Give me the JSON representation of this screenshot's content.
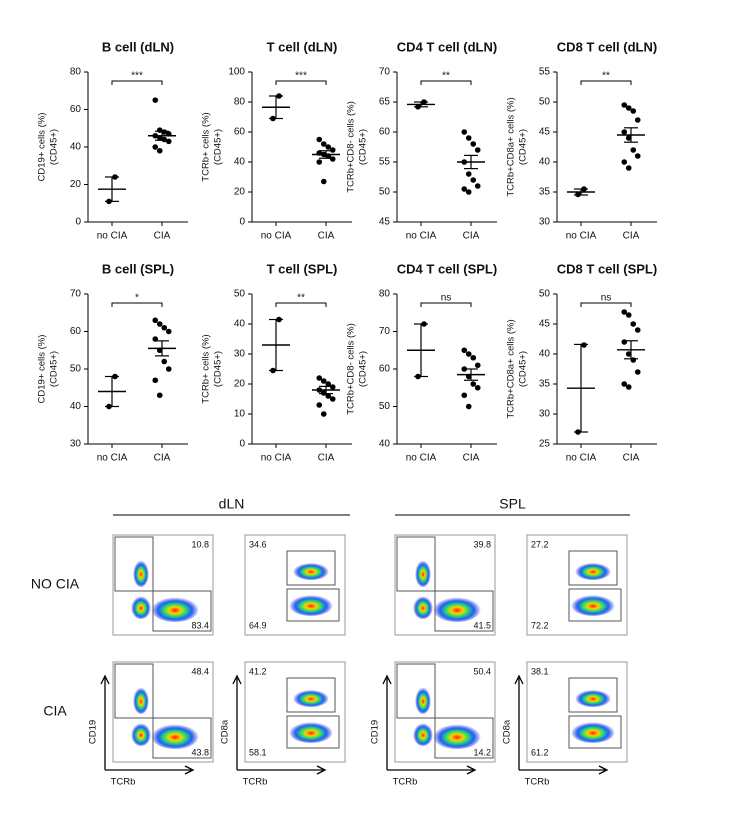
{
  "chart_data": [
    {
      "type": "dot",
      "title": "B cell (dLN)",
      "ylabel": [
        "CD19+ cells (%)",
        "(CD45+)"
      ],
      "categories": [
        "no CIA",
        "CIA"
      ],
      "values": [
        [
          24,
          11
        ],
        [
          65,
          49,
          48,
          47,
          46,
          45,
          44,
          43,
          40,
          38
        ]
      ],
      "means": [
        17.5,
        46
      ],
      "errors": [
        6.5,
        2.4
      ],
      "annotation": "***",
      "ylim": [
        0,
        80
      ],
      "yticks": [
        0,
        20,
        40,
        60,
        80
      ]
    },
    {
      "type": "dot",
      "title": "T cell (dLN)",
      "ylabel": [
        "TCRb+ cells (%)",
        "(CD45+)"
      ],
      "categories": [
        "no CIA",
        "CIA"
      ],
      "values": [
        [
          84,
          69
        ],
        [
          55,
          52,
          50,
          48,
          46,
          45,
          44,
          42,
          40,
          27
        ]
      ],
      "means": [
        76.5,
        45
      ],
      "errors": [
        7.5,
        2.5
      ],
      "annotation": "***",
      "ylim": [
        0,
        100
      ],
      "yticks": [
        0,
        20,
        40,
        60,
        80,
        100
      ]
    },
    {
      "type": "dot",
      "title": "CD4 T cell (dLN)",
      "ylabel": [
        "TCRb+CD8- cells (%)",
        "(CD45+)"
      ],
      "categories": [
        "no CIA",
        "CIA"
      ],
      "values": [
        [
          65,
          64.2
        ],
        [
          60,
          59,
          58,
          57,
          55,
          53,
          52,
          51,
          50.5,
          50
        ]
      ],
      "means": [
        64.6,
        55
      ],
      "errors": [
        0.4,
        1.1
      ],
      "annotation": "**",
      "ylim": [
        45,
        70
      ],
      "yticks": [
        45,
        50,
        55,
        60,
        65,
        70
      ]
    },
    {
      "type": "dot",
      "title": "CD8 T cell (dLN)",
      "ylabel": [
        "TCRb+CD8a+ cells (%)",
        "(CD45+)"
      ],
      "categories": [
        "no CIA",
        "CIA"
      ],
      "values": [
        [
          35.5,
          34.6
        ],
        [
          49.5,
          49,
          48.5,
          47,
          45,
          44,
          42,
          41,
          40,
          39
        ]
      ],
      "means": [
        35,
        44.5
      ],
      "errors": [
        0.5,
        1.2
      ],
      "annotation": "**",
      "ylim": [
        30,
        55
      ],
      "yticks": [
        30,
        35,
        40,
        45,
        50,
        55
      ]
    },
    {
      "type": "dot",
      "title": "B cell (SPL)",
      "ylabel": [
        "CD19+ cells (%)",
        "(CD45+)"
      ],
      "categories": [
        "no CIA",
        "CIA"
      ],
      "values": [
        [
          48,
          40
        ],
        [
          63,
          62,
          61,
          60,
          58,
          55,
          52,
          50,
          47,
          43
        ]
      ],
      "means": [
        44,
        55.5
      ],
      "errors": [
        4,
        2
      ],
      "annotation": "*",
      "ylim": [
        30,
        70
      ],
      "yticks": [
        30,
        40,
        50,
        60,
        70
      ]
    },
    {
      "type": "dot",
      "title": "T cell (SPL)",
      "ylabel": [
        "TCRb+ cells (%)",
        "(CD45+)"
      ],
      "categories": [
        "no CIA",
        "CIA"
      ],
      "values": [
        [
          41.5,
          24.5
        ],
        [
          22,
          21,
          20,
          19,
          18,
          17,
          16,
          15,
          13,
          10
        ]
      ],
      "means": [
        33,
        18
      ],
      "errors": [
        8.5,
        1.2
      ],
      "annotation": "**",
      "ylim": [
        0,
        50
      ],
      "yticks": [
        0,
        10,
        20,
        30,
        40,
        50
      ]
    },
    {
      "type": "dot",
      "title": "CD4 T cell (SPL)",
      "ylabel": [
        "TCRb+CD8- cells (%)",
        "(CD45+)"
      ],
      "categories": [
        "no CIA",
        "CIA"
      ],
      "values": [
        [
          72,
          58
        ],
        [
          65,
          64,
          63,
          61,
          60,
          58,
          56,
          55,
          53,
          50
        ]
      ],
      "means": [
        65,
        58.5
      ],
      "errors": [
        7,
        1.5
      ],
      "annotation": "ns",
      "ylim": [
        40,
        80
      ],
      "yticks": [
        40,
        50,
        60,
        70,
        80
      ]
    },
    {
      "type": "dot",
      "title": "CD8 T cell (SPL)",
      "ylabel": [
        "TCRb+CD8a+ cells (%)",
        "(CD45+)"
      ],
      "categories": [
        "no CIA",
        "CIA"
      ],
      "values": [
        [
          41.5,
          27
        ],
        [
          47,
          46.5,
          45,
          44,
          42,
          40,
          39,
          37,
          35,
          34.5
        ]
      ],
      "means": [
        34.3,
        40.7
      ],
      "errors": [
        7.3,
        1.5
      ],
      "annotation": "ns",
      "ylim": [
        25,
        50
      ],
      "yticks": [
        25,
        30,
        35,
        40,
        45,
        50
      ]
    }
  ],
  "flow": {
    "columns": [
      "dLN",
      "SPL"
    ],
    "rows": [
      "NO CIA",
      "CIA"
    ],
    "axis_labels": {
      "cd19": "CD19",
      "cd8a": "CD8a",
      "tcrb": "TCRb"
    },
    "panels": [
      {
        "top": 10.8,
        "bottom": 83.4
      },
      {
        "top": 34.6,
        "bottom": 64.9
      },
      {
        "top": 39.8,
        "bottom": 41.5
      },
      {
        "top": 27.2,
        "bottom": 72.2
      },
      {
        "top": 48.4,
        "bottom": 43.8
      },
      {
        "top": 41.2,
        "bottom": 58.1
      },
      {
        "top": 50.4,
        "bottom": 14.2
      },
      {
        "top": 38.1,
        "bottom": 61.2
      }
    ]
  }
}
